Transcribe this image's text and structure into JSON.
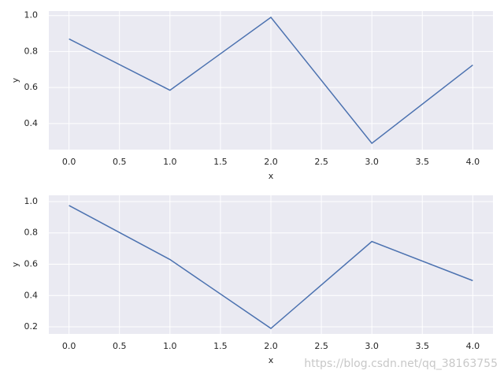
{
  "chart_data": [
    {
      "type": "line",
      "xlabel": "x",
      "ylabel": "y",
      "grid": true,
      "background": "#eaeaf2",
      "x": [
        0,
        1,
        2,
        3,
        4
      ],
      "series": [
        {
          "color": "#4c72b0",
          "values": [
            0.87,
            0.585,
            0.99,
            0.29,
            0.725
          ]
        }
      ],
      "xlim": [
        -0.2,
        4.2
      ],
      "xticks": [
        {
          "value": 0,
          "label": "0.0"
        },
        0.5,
        {
          "value": 1,
          "label": "1.0"
        },
        1.5,
        {
          "value": 2,
          "label": "2.0"
        },
        2.5,
        {
          "value": 3,
          "label": "3.0"
        },
        3.5,
        {
          "value": 4,
          "label": "4.0"
        }
      ],
      "ylim": [
        0.255,
        1.025
      ],
      "yticks": [
        0.4,
        0.6,
        0.8,
        {
          "value": 1,
          "label": "1.0"
        }
      ]
    },
    {
      "type": "line",
      "xlabel": "x",
      "ylabel": "y",
      "grid": true,
      "background": "#eaeaf2",
      "x": [
        0,
        1,
        2,
        3,
        4
      ],
      "series": [
        {
          "color": "#4c72b0",
          "values": [
            0.975,
            0.63,
            0.19,
            0.745,
            0.495
          ]
        }
      ],
      "xlim": [
        -0.2,
        4.2
      ],
      "xticks": [
        {
          "value": 0,
          "label": "0.0"
        },
        0.5,
        {
          "value": 1,
          "label": "1.0"
        },
        1.5,
        {
          "value": 2,
          "label": "2.0"
        },
        2.5,
        {
          "value": 3,
          "label": "3.0"
        },
        3.5,
        {
          "value": 4,
          "label": "4.0"
        }
      ],
      "ylim": [
        0.155,
        1.04
      ],
      "yticks": [
        0.2,
        0.4,
        0.6,
        0.8,
        {
          "value": 1,
          "label": "1.0"
        }
      ]
    }
  ],
  "watermark": "https://blog.csdn.net/qq_38163755"
}
